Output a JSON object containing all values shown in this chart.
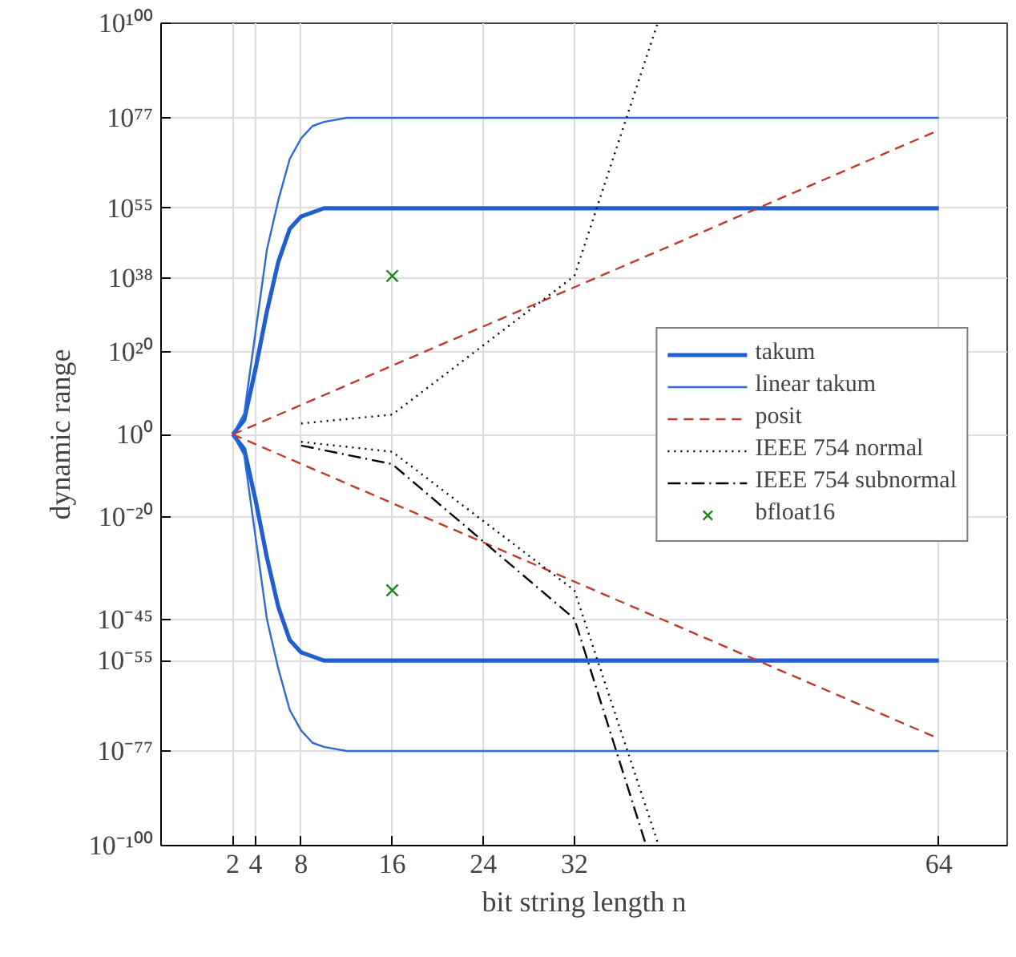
{
  "chart_data": {
    "type": "line",
    "xlabel": "bit string length n",
    "ylabel": "dynamic range",
    "log": "y",
    "grid": true,
    "legend": "right",
    "xlim": [
      -4.3,
      70
    ],
    "xticks": [
      2,
      4,
      8,
      16,
      24,
      32,
      64
    ],
    "ylim": [
      1e-100,
      1e+100
    ],
    "yticks": [
      {
        "value": 1e-100,
        "label": "10⁻¹⁰⁰"
      },
      {
        "value": 1e-77,
        "label": "10⁻⁷⁷"
      },
      {
        "value": 1e-55,
        "label": "10⁻⁵⁵"
      },
      {
        "value": 1e-45,
        "label": "10⁻⁴⁵"
      },
      {
        "value": 1e-20,
        "label": "10⁻²⁰"
      },
      {
        "value": 1,
        "label": "10⁰"
      },
      {
        "value": 1e+20,
        "label": "10²⁰"
      },
      {
        "value": 1e+38,
        "label": "10³⁸"
      },
      {
        "value": 1e+55,
        "label": "10⁵⁵"
      },
      {
        "value": 1e+77,
        "label": "10⁷⁷"
      },
      {
        "value": 1e+100,
        "label": "10¹⁰⁰"
      }
    ],
    "series": [
      {
        "name": "takum",
        "color": "#1f5fcf",
        "line_style": "solid",
        "x": [
          2,
          3,
          4,
          5,
          6,
          7,
          8,
          10,
          12,
          16,
          64
        ],
        "values": [
          1,
          3000.0,
          1e+16,
          1e+30,
          1e+42,
          1e+50,
          1e+53,
          1e+55,
          1e+55,
          1e+55,
          1e+55
        ]
      },
      {
        "color": "#1f5fcf",
        "line_style": "solid",
        "x": [
          2,
          3,
          4,
          5,
          6,
          7,
          8,
          10,
          12,
          16,
          64
        ],
        "values": [
          1,
          0.0003,
          1e-16,
          1e-30,
          1e-42,
          1e-50,
          1e-53,
          1e-55,
          1e-55,
          1e-55,
          1e-55
        ]
      },
      {
        "name": "linear takum",
        "color": "#2d6bd6",
        "line_style": "solid",
        "x": [
          2,
          3,
          4,
          5,
          6,
          7,
          8,
          9,
          10,
          12,
          16,
          64
        ],
        "values": [
          1,
          100000.0,
          1e+25,
          1e+45,
          1e+57,
          1e+67,
          1e+72,
          1e+75,
          1e+76,
          1e+77,
          1e+77,
          1e+77
        ]
      },
      {
        "color": "#2d6bd6",
        "line_style": "solid",
        "x": [
          2,
          3,
          4,
          5,
          6,
          7,
          8,
          9,
          10,
          12,
          16,
          64
        ],
        "values": [
          1,
          1e-05,
          1e-25,
          1e-45,
          1e-57,
          1e-67,
          1e-72,
          1e-75,
          1e-76,
          1e-77,
          1e-77,
          1e-77
        ]
      },
      {
        "name": "posit",
        "color": "#c0392b",
        "line_style": "dashed",
        "x": [
          2,
          64
        ],
        "values": [
          1,
          1e+74
        ]
      },
      {
        "color": "#c0392b",
        "line_style": "dashed",
        "x": [
          2,
          64
        ],
        "values": [
          1,
          1e-74
        ]
      },
      {
        "name": "IEEE 754 normal",
        "color": "#000000",
        "line_style": "dotted",
        "x": [
          8,
          16,
          32,
          39.3
        ],
        "values": [
          448,
          65504,
          3.4e+38,
          1e+100
        ]
      },
      {
        "color": "#000000",
        "line_style": "dotted",
        "x": [
          8,
          16,
          32,
          39.4
        ],
        "values": [
          0.0156,
          6.1e-05,
          1.2e-38,
          1e-100
        ]
      },
      {
        "name": "IEEE 754 subnormal",
        "color": "#000000",
        "line_style": "dashdot",
        "x": [
          8,
          16,
          32,
          38.3
        ],
        "values": [
          0.002,
          6e-08,
          1.4e-45,
          1e-100
        ]
      },
      {
        "name": "bfloat16",
        "type": "scatter",
        "marker": "cross",
        "color": "#1a8a1a",
        "x": [
          16,
          16
        ],
        "values": [
          3.4e+38,
          1.2e-38
        ]
      }
    ]
  }
}
